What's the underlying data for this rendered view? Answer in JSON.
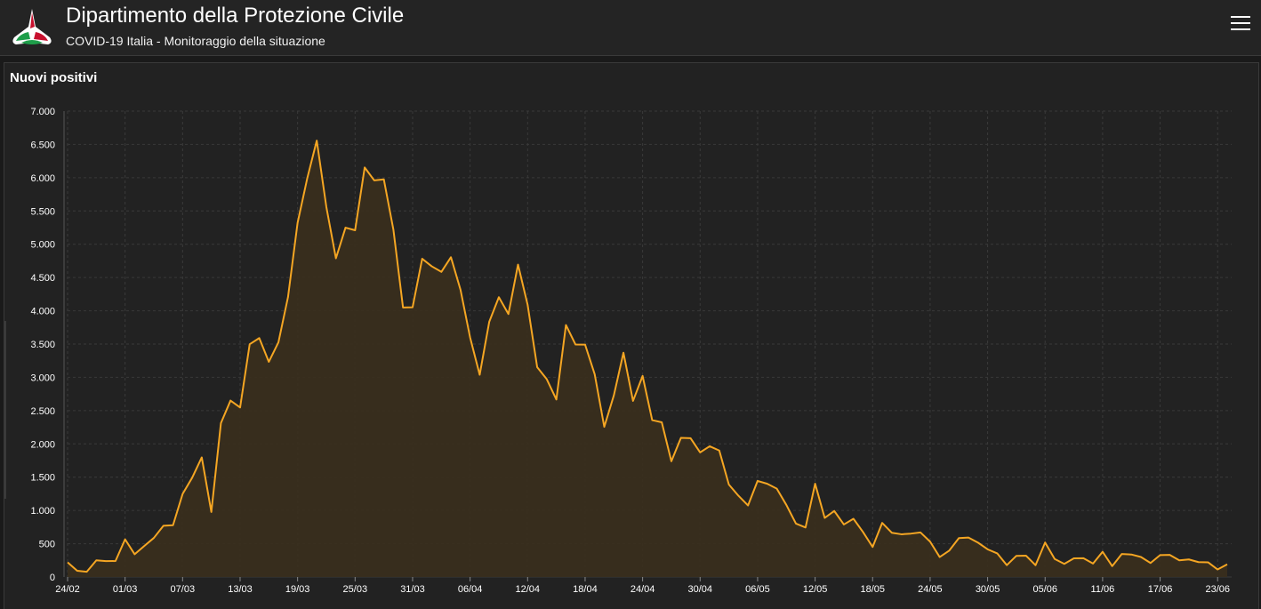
{
  "header": {
    "title": "Dipartimento della Protezione Civile",
    "subtitle": "COVID-19 Italia - Monitoraggio della situazione"
  },
  "panel": {
    "title": "Nuovi positivi"
  },
  "colors": {
    "line": "#f5a623",
    "fill": "#3a2f1d",
    "background": "#222222",
    "grid": "#3a3a3a"
  },
  "chart_data": {
    "type": "area",
    "title": "Nuovi positivi",
    "ylim": [
      0,
      7000
    ],
    "yticks": [
      0,
      500,
      1000,
      1500,
      2000,
      2500,
      3000,
      3500,
      4000,
      4500,
      5000,
      5500,
      6000,
      6500,
      7000
    ],
    "ytick_labels": [
      "0",
      "500",
      "1.000",
      "1.500",
      "2.000",
      "2.500",
      "3.000",
      "3.500",
      "4.000",
      "4.500",
      "5.000",
      "5.500",
      "6.000",
      "6.500",
      "7.000"
    ],
    "xtick_labels": [
      "24/02",
      "01/03",
      "07/03",
      "13/03",
      "19/03",
      "25/03",
      "31/03",
      "06/04",
      "12/04",
      "18/04",
      "24/04",
      "30/04",
      "06/05",
      "12/05",
      "18/05",
      "24/05",
      "30/05",
      "05/06",
      "11/06",
      "17/06",
      "23/06"
    ],
    "xtick_index": [
      0,
      6,
      12,
      18,
      24,
      30,
      36,
      42,
      48,
      54,
      60,
      66,
      72,
      78,
      84,
      90,
      96,
      102,
      108,
      114,
      120
    ],
    "grid": true,
    "start_date": "24/02",
    "values": [
      221,
      93,
      78,
      250,
      238,
      240,
      566,
      342,
      466,
      587,
      769,
      778,
      1247,
      1492,
      1797,
      977,
      2313,
      2651,
      2547,
      3497,
      3590,
      3233,
      3526,
      4207,
      5322,
      5986,
      6557,
      5560,
      4789,
      5249,
      5210,
      6153,
      5959,
      5974,
      5217,
      4050,
      4053,
      4782,
      4668,
      4585,
      4805,
      4316,
      3599,
      3039,
      3836,
      4204,
      3951,
      4694,
      4092,
      3153,
      2972,
      2667,
      3786,
      3493,
      3491,
      3047,
      2256,
      2729,
      3370,
      2646,
      3021,
      2357,
      2324,
      1739,
      2091,
      2086,
      1872,
      1965,
      1900,
      1389,
      1221,
      1075,
      1444,
      1401,
      1327,
      1083,
      802,
      744,
      1402,
      888,
      992,
      789,
      875,
      675,
      451,
      813,
      665,
      642,
      652,
      669,
      531,
      300,
      397,
      584,
      593,
      516,
      416,
      355,
      178,
      318,
      321,
      177,
      518,
      270,
      197,
      280,
      283,
      202,
      379,
      163,
      346,
      338,
      301,
      210,
      329,
      333,
      251,
      264,
      224,
      221,
      113,
      190
    ]
  }
}
